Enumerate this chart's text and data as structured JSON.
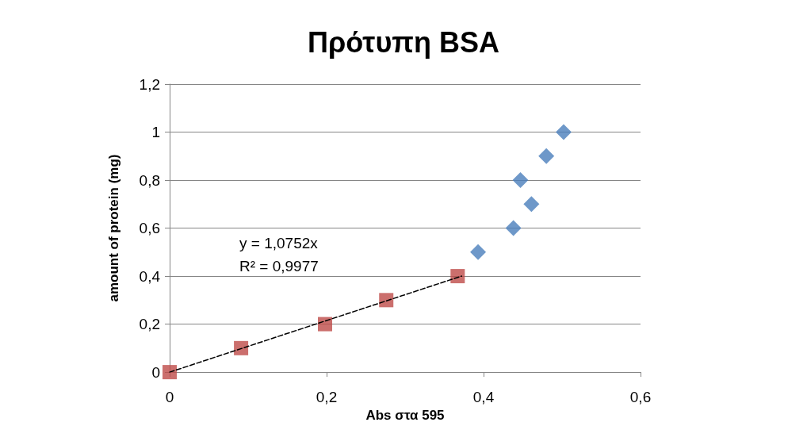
{
  "chart_data": {
    "type": "scatter",
    "title": "Πρότυπη BSA",
    "xlabel": "Abs στα 595",
    "ylabel": "amount of protein (mg)",
    "xlim": [
      0,
      0.6
    ],
    "xticks": [
      0,
      {
        "value": 0.2,
        "label": "0,2"
      },
      {
        "value": 0.4,
        "label": "0,4"
      },
      {
        "value": 0.6,
        "label": "0,6"
      }
    ],
    "ylim": [
      0,
      1.2
    ],
    "yticks": [
      0,
      {
        "value": 0.2,
        "label": "0,2"
      },
      {
        "value": 0.4,
        "label": "0,4"
      },
      {
        "value": 0.6,
        "label": "0,6"
      },
      {
        "value": 0.8,
        "label": "0,8"
      },
      1,
      {
        "value": 1.2,
        "label": "1,2"
      }
    ],
    "grid": "y",
    "series": [
      {
        "marker": "diamond",
        "color": "#4a7ebb",
        "x": [
          0.393,
          0.438,
          0.447,
          0.461,
          0.48,
          0.502
        ],
        "values": [
          0.5,
          0.6,
          0.8,
          0.7,
          0.9,
          1.0
        ]
      },
      {
        "marker": "square",
        "color": "#be4b48",
        "x": [
          0,
          0.091,
          0.198,
          0.276,
          0.367
        ],
        "values": [
          0,
          0.1,
          0.2,
          0.3,
          0.4
        ]
      },
      {
        "type": "line",
        "line_style": "dashed",
        "marker": "none",
        "color": "#000000",
        "x": [
          0,
          0.372
        ],
        "values": [
          0,
          0.4
        ]
      }
    ],
    "annotations": [
      "y = 1,0752x",
      "R² = 0,9977"
    ]
  }
}
